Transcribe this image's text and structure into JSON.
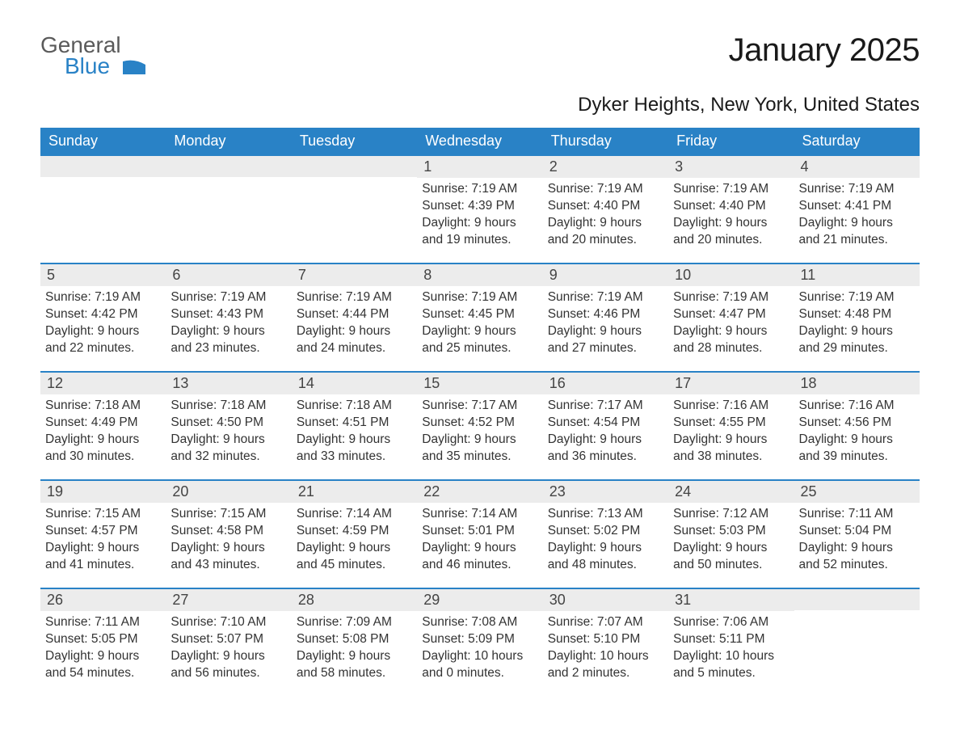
{
  "logo": {
    "general": "General",
    "blue": "Blue",
    "glyph_color": "#2982c6"
  },
  "title": "January 2025",
  "location": "Dyker Heights, New York, United States",
  "colors": {
    "header_bg": "#2982c6",
    "header_text": "#ffffff",
    "daynum_bg": "#ececec",
    "body_text": "#333333",
    "rule": "#2982c6"
  },
  "weekday_labels": [
    "Sunday",
    "Monday",
    "Tuesday",
    "Wednesday",
    "Thursday",
    "Friday",
    "Saturday"
  ],
  "weeks": [
    [
      null,
      null,
      null,
      {
        "n": "1",
        "sunrise": "7:19 AM",
        "sunset": "4:39 PM",
        "daylight": "9 hours and 19 minutes."
      },
      {
        "n": "2",
        "sunrise": "7:19 AM",
        "sunset": "4:40 PM",
        "daylight": "9 hours and 20 minutes."
      },
      {
        "n": "3",
        "sunrise": "7:19 AM",
        "sunset": "4:40 PM",
        "daylight": "9 hours and 20 minutes."
      },
      {
        "n": "4",
        "sunrise": "7:19 AM",
        "sunset": "4:41 PM",
        "daylight": "9 hours and 21 minutes."
      }
    ],
    [
      {
        "n": "5",
        "sunrise": "7:19 AM",
        "sunset": "4:42 PM",
        "daylight": "9 hours and 22 minutes."
      },
      {
        "n": "6",
        "sunrise": "7:19 AM",
        "sunset": "4:43 PM",
        "daylight": "9 hours and 23 minutes."
      },
      {
        "n": "7",
        "sunrise": "7:19 AM",
        "sunset": "4:44 PM",
        "daylight": "9 hours and 24 minutes."
      },
      {
        "n": "8",
        "sunrise": "7:19 AM",
        "sunset": "4:45 PM",
        "daylight": "9 hours and 25 minutes."
      },
      {
        "n": "9",
        "sunrise": "7:19 AM",
        "sunset": "4:46 PM",
        "daylight": "9 hours and 27 minutes."
      },
      {
        "n": "10",
        "sunrise": "7:19 AM",
        "sunset": "4:47 PM",
        "daylight": "9 hours and 28 minutes."
      },
      {
        "n": "11",
        "sunrise": "7:19 AM",
        "sunset": "4:48 PM",
        "daylight": "9 hours and 29 minutes."
      }
    ],
    [
      {
        "n": "12",
        "sunrise": "7:18 AM",
        "sunset": "4:49 PM",
        "daylight": "9 hours and 30 minutes."
      },
      {
        "n": "13",
        "sunrise": "7:18 AM",
        "sunset": "4:50 PM",
        "daylight": "9 hours and 32 minutes."
      },
      {
        "n": "14",
        "sunrise": "7:18 AM",
        "sunset": "4:51 PM",
        "daylight": "9 hours and 33 minutes."
      },
      {
        "n": "15",
        "sunrise": "7:17 AM",
        "sunset": "4:52 PM",
        "daylight": "9 hours and 35 minutes."
      },
      {
        "n": "16",
        "sunrise": "7:17 AM",
        "sunset": "4:54 PM",
        "daylight": "9 hours and 36 minutes."
      },
      {
        "n": "17",
        "sunrise": "7:16 AM",
        "sunset": "4:55 PM",
        "daylight": "9 hours and 38 minutes."
      },
      {
        "n": "18",
        "sunrise": "7:16 AM",
        "sunset": "4:56 PM",
        "daylight": "9 hours and 39 minutes."
      }
    ],
    [
      {
        "n": "19",
        "sunrise": "7:15 AM",
        "sunset": "4:57 PM",
        "daylight": "9 hours and 41 minutes."
      },
      {
        "n": "20",
        "sunrise": "7:15 AM",
        "sunset": "4:58 PM",
        "daylight": "9 hours and 43 minutes."
      },
      {
        "n": "21",
        "sunrise": "7:14 AM",
        "sunset": "4:59 PM",
        "daylight": "9 hours and 45 minutes."
      },
      {
        "n": "22",
        "sunrise": "7:14 AM",
        "sunset": "5:01 PM",
        "daylight": "9 hours and 46 minutes."
      },
      {
        "n": "23",
        "sunrise": "7:13 AM",
        "sunset": "5:02 PM",
        "daylight": "9 hours and 48 minutes."
      },
      {
        "n": "24",
        "sunrise": "7:12 AM",
        "sunset": "5:03 PM",
        "daylight": "9 hours and 50 minutes."
      },
      {
        "n": "25",
        "sunrise": "7:11 AM",
        "sunset": "5:04 PM",
        "daylight": "9 hours and 52 minutes."
      }
    ],
    [
      {
        "n": "26",
        "sunrise": "7:11 AM",
        "sunset": "5:05 PM",
        "daylight": "9 hours and 54 minutes."
      },
      {
        "n": "27",
        "sunrise": "7:10 AM",
        "sunset": "5:07 PM",
        "daylight": "9 hours and 56 minutes."
      },
      {
        "n": "28",
        "sunrise": "7:09 AM",
        "sunset": "5:08 PM",
        "daylight": "9 hours and 58 minutes."
      },
      {
        "n": "29",
        "sunrise": "7:08 AM",
        "sunset": "5:09 PM",
        "daylight": "10 hours and 0 minutes."
      },
      {
        "n": "30",
        "sunrise": "7:07 AM",
        "sunset": "5:10 PM",
        "daylight": "10 hours and 2 minutes."
      },
      {
        "n": "31",
        "sunrise": "7:06 AM",
        "sunset": "5:11 PM",
        "daylight": "10 hours and 5 minutes."
      },
      null
    ]
  ],
  "labels": {
    "sunrise": "Sunrise: ",
    "sunset": "Sunset: ",
    "daylight": "Daylight: "
  }
}
